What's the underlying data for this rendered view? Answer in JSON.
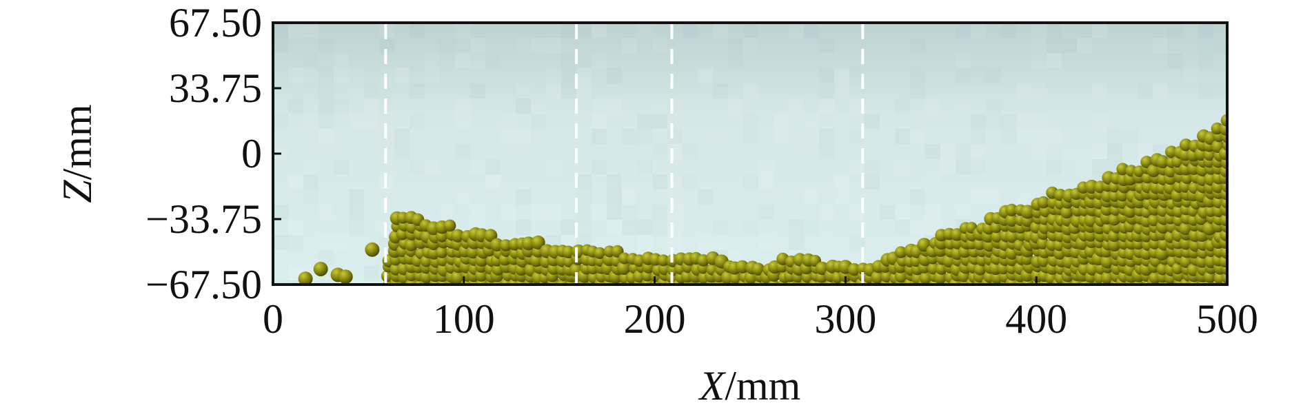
{
  "chart_data": {
    "type": "scatter",
    "title": "",
    "xlabel": {
      "var": "X",
      "unit": "/mm"
    },
    "ylabel": {
      "var": "Z",
      "unit": "/mm"
    },
    "xlim": [
      0,
      500
    ],
    "ylim": [
      -67.5,
      67.5
    ],
    "xticks": [
      0,
      100,
      200,
      300,
      400,
      500
    ],
    "xtick_labels": [
      "0",
      "100",
      "200",
      "300",
      "400",
      "500"
    ],
    "yticks": [
      -67.5,
      -33.75,
      0,
      33.75,
      67.5
    ],
    "ytick_labels": [
      "−67.50",
      "−33.75",
      "0",
      "33.75",
      "67.50"
    ],
    "grid": false,
    "legend": "none",
    "background_color": "#d8eaea",
    "particle_color": "#8a8a10",
    "divider_lines_x": [
      59,
      159,
      209,
      309
    ],
    "surface_profile": {
      "x": [
        0,
        15,
        25,
        35,
        45,
        55,
        59,
        62,
        70,
        80,
        90,
        100,
        110,
        120,
        130,
        140,
        150,
        160,
        170,
        180,
        190,
        200,
        210,
        220,
        230,
        240,
        250,
        260,
        270,
        280,
        290,
        300,
        310,
        320,
        330,
        340,
        350,
        360,
        370,
        380,
        390,
        400,
        410,
        420,
        430,
        440,
        450,
        460,
        470,
        480,
        490,
        495,
        500
      ],
      "z": [
        -67.5,
        -67.5,
        -67.5,
        -67.5,
        -67.5,
        -67.5,
        -67.5,
        -31,
        -33,
        -35,
        -37,
        -40,
        -42,
        -44,
        -46,
        -47,
        -48,
        -49,
        -50,
        -51,
        -52,
        -53,
        -54,
        -55,
        -55,
        -56,
        -56,
        -56,
        -55,
        -55,
        -56,
        -56,
        -57,
        -55,
        -51,
        -47,
        -43,
        -39,
        -35,
        -31,
        -28,
        -25,
        -21,
        -18,
        -15,
        -11,
        -7,
        -4,
        1,
        5,
        9,
        15,
        18
      ]
    },
    "loose_particles": {
      "x": [
        17,
        25,
        34,
        38,
        52
      ],
      "z": [
        -64.5,
        -59.5,
        -62.5,
        -63.5,
        -49.5
      ]
    }
  }
}
